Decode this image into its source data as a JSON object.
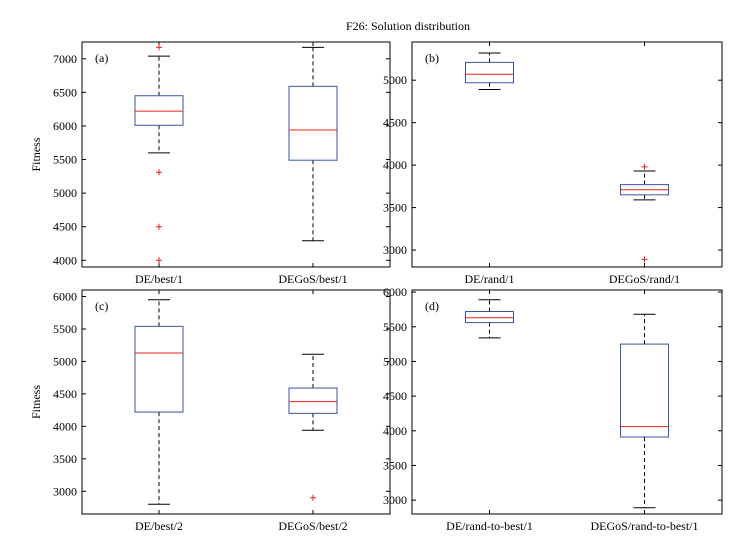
{
  "title": "F26: Solution distribution",
  "chart_data": [
    {
      "type": "box",
      "panel_label": "(a)",
      "ylabel": "Fitness",
      "ylim": [
        3900,
        7250
      ],
      "yticks": [
        4000,
        4500,
        5000,
        5500,
        6000,
        6500,
        7000
      ],
      "categories": [
        "DE/best/1",
        "DEGoS/best/1"
      ],
      "boxes": [
        {
          "whisker_low": 5600,
          "q1": 6010,
          "median": 6220,
          "q3": 6450,
          "whisker_high": 7040,
          "outliers": [
            7170,
            5310,
            4500,
            4000
          ]
        },
        {
          "whisker_low": 4290,
          "q1": 5490,
          "median": 5940,
          "q3": 6590,
          "whisker_high": 7170,
          "outliers": []
        }
      ]
    },
    {
      "type": "box",
      "panel_label": "(b)",
      "ylabel": "",
      "ylim": [
        2800,
        5450
      ],
      "yticks": [
        3000,
        3500,
        4000,
        4500,
        5000
      ],
      "categories": [
        "DE/rand/1",
        "DEGoS/rand/1"
      ],
      "boxes": [
        {
          "whisker_low": 4890,
          "q1": 4970,
          "median": 5070,
          "q3": 5210,
          "whisker_high": 5320,
          "outliers": []
        },
        {
          "whisker_low": 3590,
          "q1": 3650,
          "median": 3710,
          "q3": 3770,
          "whisker_high": 3930,
          "outliers": [
            3980,
            2890
          ]
        }
      ]
    },
    {
      "type": "box",
      "panel_label": "(c)",
      "ylabel": "Fitness",
      "ylim": [
        2650,
        6100
      ],
      "yticks": [
        3000,
        3500,
        4000,
        4500,
        5000,
        5500,
        6000
      ],
      "categories": [
        "DE/best/2",
        "DEGoS/best/2"
      ],
      "boxes": [
        {
          "whisker_low": 2800,
          "q1": 4220,
          "median": 5130,
          "q3": 5540,
          "whisker_high": 5950,
          "outliers": []
        },
        {
          "whisker_low": 3940,
          "q1": 4200,
          "median": 4380,
          "q3": 4590,
          "whisker_high": 5110,
          "outliers": [
            2900
          ]
        }
      ]
    },
    {
      "type": "box",
      "panel_label": "(d)",
      "ylabel": "",
      "ylim": [
        2800,
        6030
      ],
      "yticks": [
        3000,
        3500,
        4000,
        4500,
        5000,
        5500,
        6000
      ],
      "categories": [
        "DE/rand-to-best/1",
        "DEGoS/rand-to-best/1"
      ],
      "boxes": [
        {
          "whisker_low": 5340,
          "q1": 5560,
          "median": 5630,
          "q3": 5720,
          "whisker_high": 5890,
          "outliers": []
        },
        {
          "whisker_low": 2890,
          "q1": 3910,
          "median": 4060,
          "q3": 5250,
          "whisker_high": 5680,
          "outliers": []
        }
      ]
    }
  ],
  "colors": {
    "box": "#3a52a8",
    "median": "#e8231f",
    "whisker": "#000000",
    "outlier": "#e8231f"
  }
}
